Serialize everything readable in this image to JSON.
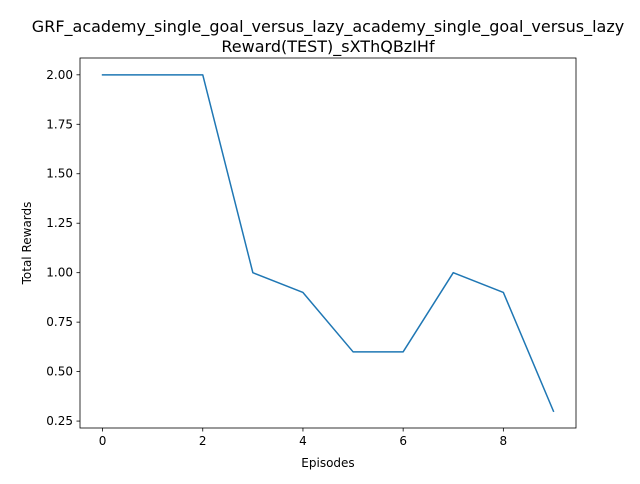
{
  "chart_data": {
    "type": "line",
    "title_line1": "GRF_academy_single_goal_versus_lazy_academy_single_goal_versus_lazy",
    "title_line2": "Reward(TEST)_sXThQBzIHf",
    "xlabel": "Episodes",
    "ylabel": "Total Rewards",
    "x": [
      0,
      1,
      2,
      3,
      4,
      5,
      6,
      7,
      8,
      9
    ],
    "series": [
      {
        "values": [
          2.0,
          2.0,
          2.0,
          1.0,
          0.9,
          0.6,
          0.6,
          1.0,
          0.9,
          0.3
        ],
        "color": "#1f77b4"
      }
    ],
    "xlim": [
      -0.45,
      9.45
    ],
    "ylim": [
      0.215,
      2.085
    ],
    "xticks": [
      0,
      2,
      4,
      6,
      8
    ],
    "xtick_labels": [
      "0",
      "2",
      "4",
      "6",
      "8"
    ],
    "yticks": [
      0.25,
      0.5,
      0.75,
      1.0,
      1.25,
      1.5,
      1.75,
      2.0
    ],
    "ytick_labels": [
      "0.25",
      "0.50",
      "0.75",
      "1.00",
      "1.25",
      "1.50",
      "1.75",
      "2.00"
    ],
    "grid": false,
    "legend": "none"
  }
}
